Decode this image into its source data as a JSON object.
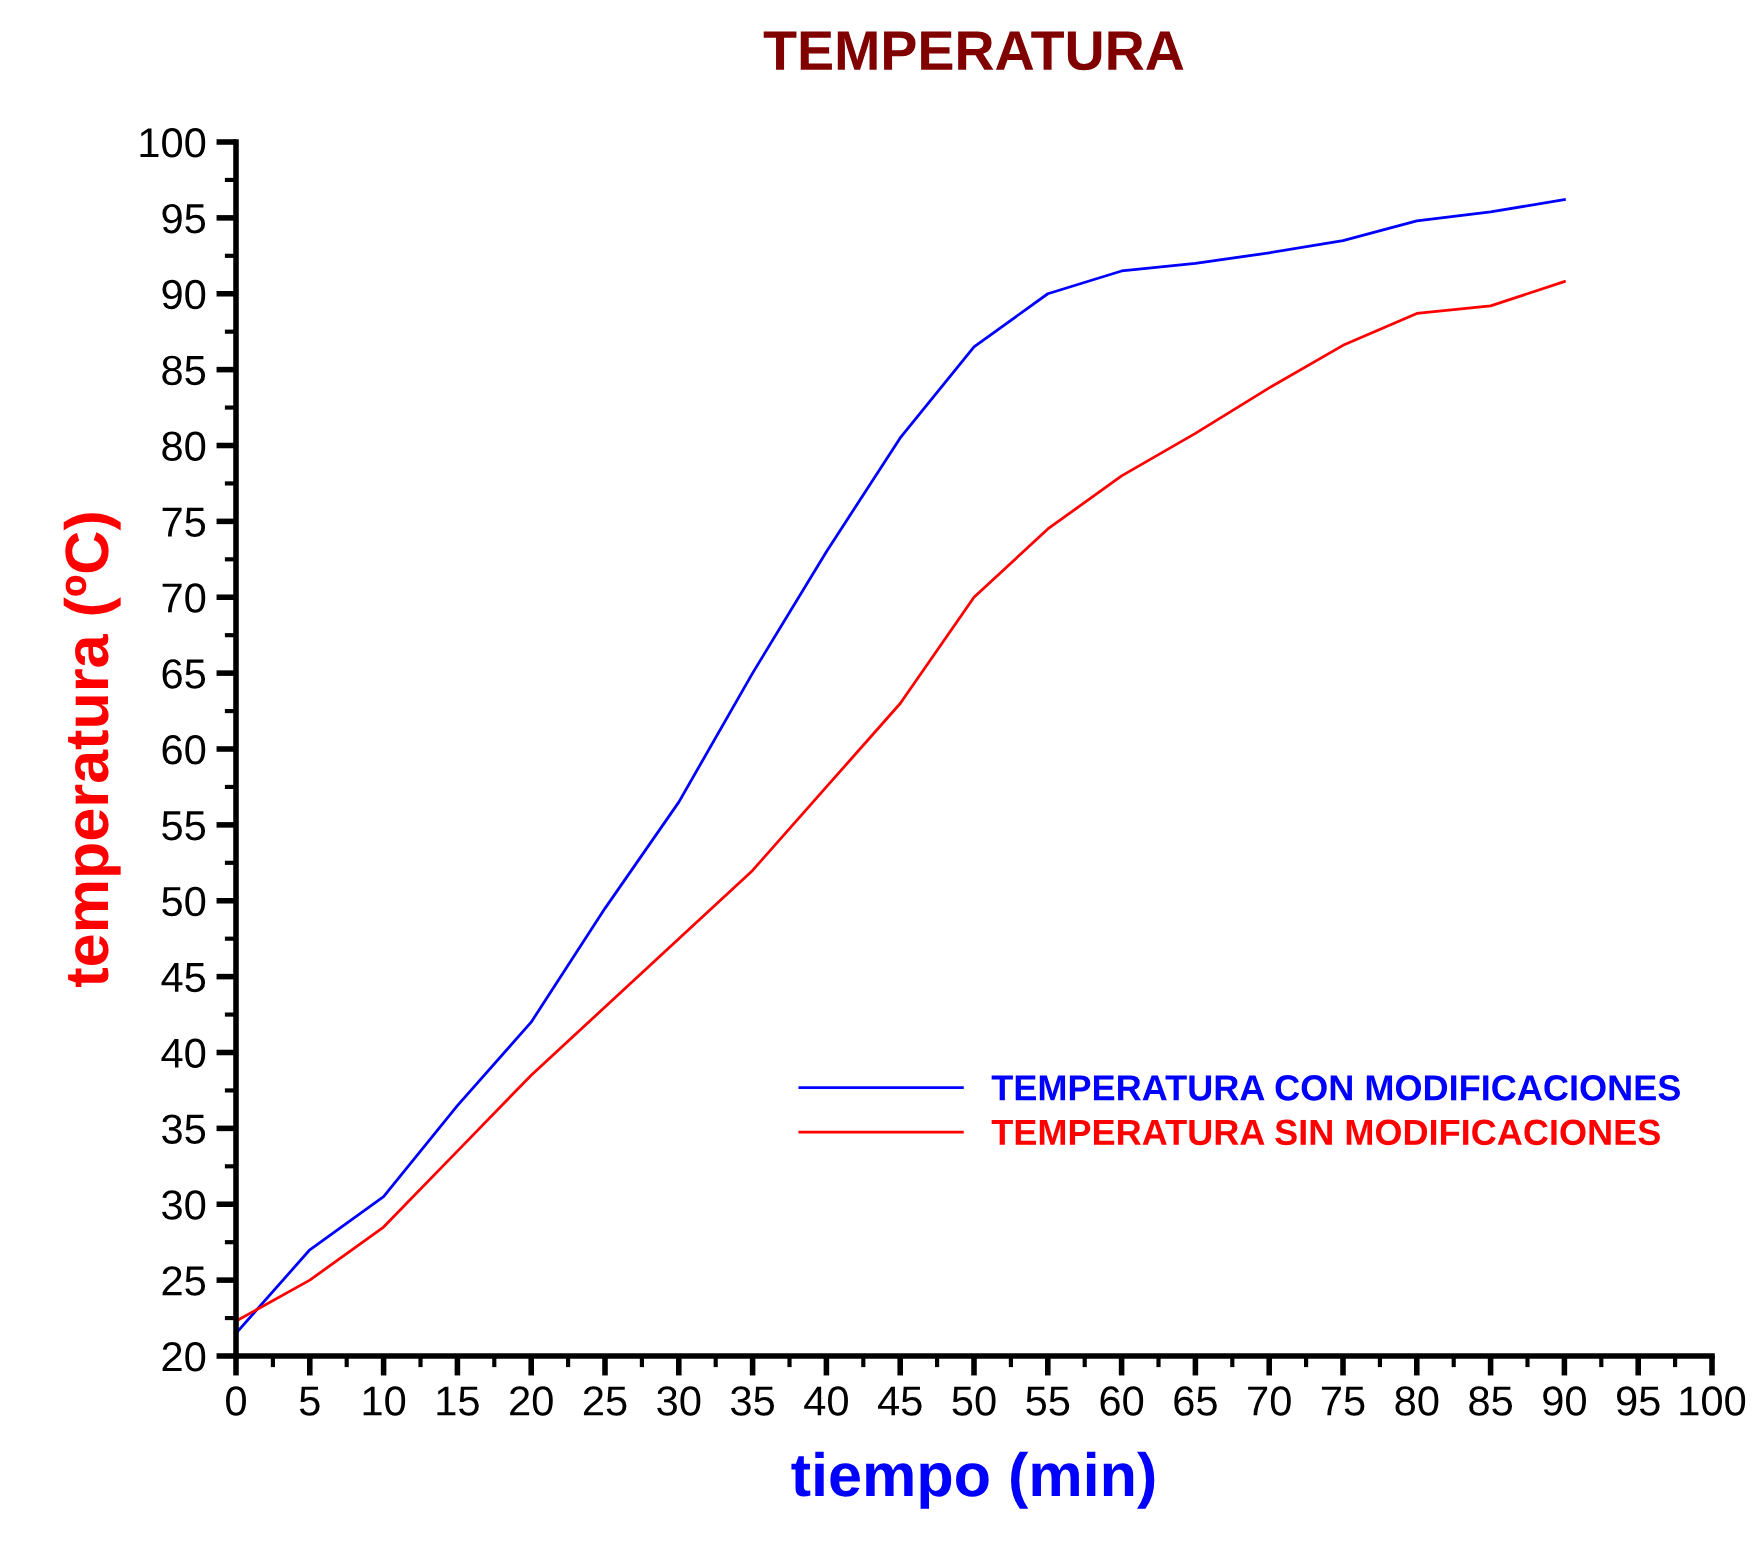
{
  "chart_data": {
    "type": "line",
    "title": "TEMPERATURA",
    "xlabel": "tiempo (min)",
    "ylabel": "temperatura (ºC)",
    "x": [
      0,
      5,
      10,
      15,
      20,
      25,
      30,
      35,
      40,
      45,
      50,
      55,
      60,
      65,
      70,
      75,
      80,
      85,
      90
    ],
    "series": [
      {
        "name": "TEMPERATURA CON MODIFICACIONES",
        "color": "#0000ff",
        "values": [
          21.5,
          27,
          30.5,
          36.5,
          42,
          49.5,
          56.5,
          65,
          73,
          80.5,
          86.5,
          90,
          91.5,
          92,
          92.7,
          93.5,
          94.8,
          95.4,
          96.2
        ]
      },
      {
        "name": "TEMPERATURA SIN MODIFICACIONES",
        "color": "#ff0000",
        "values": [
          22.3,
          25,
          28.5,
          33.5,
          38.5,
          43,
          47.5,
          52,
          57.5,
          63,
          70,
          74.5,
          78,
          80.8,
          83.8,
          86.6,
          88.7,
          89.2,
          90.8
        ]
      }
    ],
    "xlim": [
      0,
      100
    ],
    "xticks": [
      0,
      5,
      10,
      15,
      20,
      25,
      30,
      35,
      40,
      45,
      50,
      55,
      60,
      65,
      70,
      75,
      80,
      85,
      90,
      95,
      100
    ],
    "ylim": [
      20,
      100
    ],
    "yticks": [
      20,
      25,
      30,
      35,
      40,
      45,
      50,
      55,
      60,
      65,
      70,
      75,
      80,
      85,
      90,
      95,
      100
    ],
    "grid": false,
    "legend": "right",
    "marker": "none",
    "line_style": "solid"
  }
}
